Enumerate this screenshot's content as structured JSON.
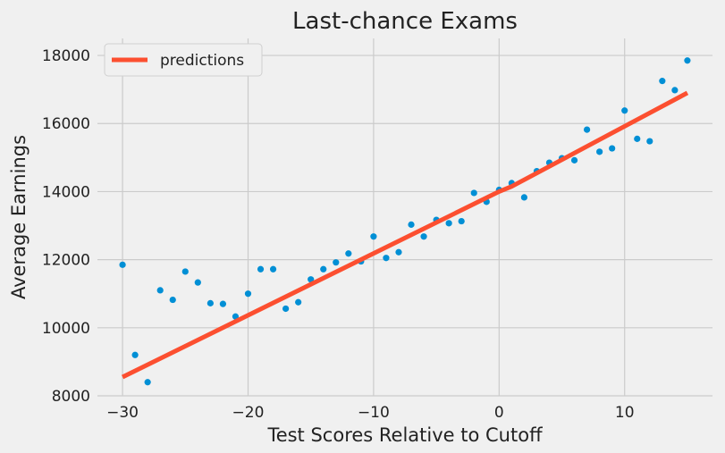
{
  "chart_data": {
    "type": "scatter",
    "title": "Last-chance Exams",
    "xlabel": "Test Scores Relative to Cutoff",
    "ylabel": "Average Earnings",
    "xlim": [
      -32,
      17
    ],
    "ylim": [
      8000,
      18500
    ],
    "xticks": [
      -30,
      -20,
      -10,
      0,
      10
    ],
    "yticks": [
      8000,
      10000,
      12000,
      14000,
      16000,
      18000
    ],
    "grid": true,
    "legend_position": "top-left",
    "colors": {
      "points": "#008fd5",
      "line": "#fc4f30",
      "background": "#f0f0f0",
      "grid": "#cbcbcb"
    },
    "series": [
      {
        "kind": "scatter",
        "points": [
          [
            -30,
            11850
          ],
          [
            -29,
            9200
          ],
          [
            -28,
            8400
          ],
          [
            -27,
            11100
          ],
          [
            -26,
            10820
          ],
          [
            -25,
            11650
          ],
          [
            -24,
            11330
          ],
          [
            -23,
            10720
          ],
          [
            -22,
            10700
          ],
          [
            -21,
            10330
          ],
          [
            -20,
            11000
          ],
          [
            -19,
            11720
          ],
          [
            -18,
            11720
          ],
          [
            -17,
            10560
          ],
          [
            -16,
            10750
          ],
          [
            -15,
            11420
          ],
          [
            -14,
            11720
          ],
          [
            -13,
            11920
          ],
          [
            -12,
            12180
          ],
          [
            -11,
            11950
          ],
          [
            -10,
            12680
          ],
          [
            -9,
            12050
          ],
          [
            -8,
            12220
          ],
          [
            -7,
            13030
          ],
          [
            -6,
            12680
          ],
          [
            -5,
            13170
          ],
          [
            -4,
            13070
          ],
          [
            -3,
            13130
          ],
          [
            -2,
            13960
          ],
          [
            -1,
            13700
          ],
          [
            0,
            14050
          ],
          [
            1,
            14250
          ],
          [
            2,
            13830
          ],
          [
            3,
            14600
          ],
          [
            4,
            14850
          ],
          [
            5,
            14980
          ],
          [
            6,
            14920
          ],
          [
            7,
            15820
          ],
          [
            8,
            15170
          ],
          [
            9,
            15270
          ],
          [
            10,
            16380
          ],
          [
            11,
            15550
          ],
          [
            12,
            15480
          ],
          [
            13,
            17250
          ],
          [
            14,
            16980
          ],
          [
            15,
            17850
          ]
        ]
      },
      {
        "kind": "line",
        "name": "predictions",
        "points": [
          [
            -30,
            8550
          ],
          [
            0,
            14000
          ],
          [
            1,
            14150
          ],
          [
            15,
            16900
          ]
        ]
      }
    ]
  }
}
